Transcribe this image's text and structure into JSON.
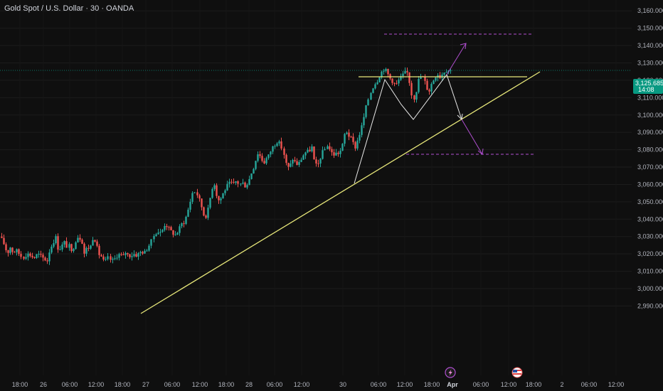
{
  "header": {
    "title": "Gold Spot / U.S. Dollar · 30 · OANDA"
  },
  "colors": {
    "background": "#0f0f0f",
    "up": "#26a69a",
    "down": "#ef5350",
    "trendline": "#e8e87a",
    "projection": "#b04fd0",
    "pattern": "#e6e6e6",
    "price_tag": "#089981"
  },
  "price_tag": {
    "price": "3,125.685",
    "countdown": "14:08"
  },
  "icons": {
    "event1": "lightning-event-icon",
    "event2": "us-flag-event-icon"
  },
  "chart_data": {
    "type": "candlestick",
    "title": "Gold Spot / U.S. Dollar · 30 · OANDA",
    "ylim": [
      2988,
      3163
    ],
    "y_tick_labels": [
      "3,160.000",
      "3,150.000",
      "3,140.000",
      "3,130.000",
      "3,120.000",
      "3,110.000",
      "3,100.000",
      "3,090.000",
      "3,080.000",
      "3,070.000",
      "3,060.000",
      "3,050.000",
      "3,040.000",
      "3,030.000",
      "3,020.000",
      "3,010.000",
      "3,000.000",
      "2,990.000"
    ],
    "y_tick_values": [
      3160,
      3150,
      3140,
      3130,
      3120,
      3110,
      3100,
      3090,
      3080,
      3070,
      3060,
      3050,
      3040,
      3030,
      3020,
      3010,
      3000,
      2990
    ],
    "x_tick_labels": [
      "18:00",
      "26",
      "06:00",
      "12:00",
      "18:00",
      "27",
      "06:00",
      "12:00",
      "18:00",
      "28",
      "06:00",
      "12:00",
      "30",
      "06:00",
      "12:00",
      "18:00",
      "Apr",
      "06:00",
      "12:00",
      "18:00",
      "2",
      "06:00",
      "12:00"
    ],
    "x_bold_labels": [
      "Apr"
    ],
    "last_price": 3125.685,
    "path": [
      [
        0,
        3030
      ],
      [
        6,
        3025
      ],
      [
        10,
        3020
      ],
      [
        14,
        3024
      ],
      [
        18,
        3021
      ],
      [
        24,
        3022
      ],
      [
        28,
        3019
      ],
      [
        32,
        3018
      ],
      [
        38,
        3020
      ],
      [
        44,
        3019
      ],
      [
        46,
        3017
      ],
      [
        52,
        3020
      ],
      [
        56,
        3019
      ],
      [
        62,
        3017
      ],
      [
        66,
        3016
      ],
      [
        70,
        3023
      ],
      [
        74,
        3026
      ],
      [
        78,
        3030
      ],
      [
        82,
        3022
      ],
      [
        86,
        3024
      ],
      [
        90,
        3027
      ],
      [
        94,
        3024
      ],
      [
        98,
        3025
      ],
      [
        100,
        3020
      ],
      [
        104,
        3026
      ],
      [
        108,
        3030
      ],
      [
        112,
        3029
      ],
      [
        116,
        3026
      ],
      [
        118,
        3020
      ],
      [
        122,
        3024
      ],
      [
        126,
        3023
      ],
      [
        130,
        3029
      ],
      [
        134,
        3028
      ],
      [
        138,
        3020
      ],
      [
        142,
        3019
      ],
      [
        144,
        3016
      ],
      [
        148,
        3016
      ],
      [
        152,
        3018
      ],
      [
        156,
        3016
      ],
      [
        160,
        3017
      ],
      [
        164,
        3019
      ],
      [
        168,
        3020
      ],
      [
        172,
        3018
      ],
      [
        176,
        3021
      ],
      [
        180,
        3019
      ],
      [
        184,
        3019
      ],
      [
        188,
        3020
      ],
      [
        192,
        3019
      ],
      [
        196,
        3021
      ],
      [
        200,
        3021
      ],
      [
        204,
        3021
      ],
      [
        208,
        3024
      ],
      [
        212,
        3027
      ],
      [
        216,
        3031
      ],
      [
        220,
        3033
      ],
      [
        224,
        3032
      ],
      [
        228,
        3034
      ],
      [
        232,
        3038
      ],
      [
        234,
        3036
      ],
      [
        238,
        3034
      ],
      [
        242,
        3032
      ],
      [
        246,
        3031
      ],
      [
        250,
        3033
      ],
      [
        254,
        3037
      ],
      [
        258,
        3038
      ],
      [
        262,
        3042
      ],
      [
        266,
        3048
      ],
      [
        270,
        3055
      ],
      [
        274,
        3056
      ],
      [
        278,
        3053
      ],
      [
        282,
        3048
      ],
      [
        286,
        3042
      ],
      [
        288,
        3041
      ],
      [
        292,
        3046
      ],
      [
        296,
        3055
      ],
      [
        300,
        3062
      ],
      [
        304,
        3054
      ],
      [
        308,
        3050
      ],
      [
        312,
        3054
      ],
      [
        316,
        3057
      ],
      [
        320,
        3060
      ],
      [
        324,
        3061
      ],
      [
        328,
        3060
      ],
      [
        332,
        3062
      ],
      [
        336,
        3060
      ],
      [
        340,
        3061
      ],
      [
        344,
        3059
      ],
      [
        348,
        3061
      ],
      [
        352,
        3066
      ],
      [
        356,
        3070
      ],
      [
        358,
        3073
      ],
      [
        362,
        3078
      ],
      [
        366,
        3076
      ],
      [
        370,
        3072
      ],
      [
        374,
        3075
      ],
      [
        378,
        3077
      ],
      [
        382,
        3081
      ],
      [
        386,
        3083
      ],
      [
        390,
        3085
      ],
      [
        394,
        3083
      ],
      [
        398,
        3078
      ],
      [
        400,
        3075
      ],
      [
        402,
        3071
      ],
      [
        406,
        3069
      ],
      [
        410,
        3075
      ],
      [
        414,
        3073
      ],
      [
        418,
        3071
      ],
      [
        422,
        3074
      ],
      [
        426,
        3077
      ],
      [
        430,
        3079
      ],
      [
        434,
        3079
      ],
      [
        438,
        3082
      ],
      [
        440,
        3075
      ],
      [
        444,
        3071
      ],
      [
        448,
        3072
      ],
      [
        452,
        3078
      ],
      [
        456,
        3080
      ],
      [
        460,
        3083
      ],
      [
        464,
        3079
      ],
      [
        468,
        3077
      ],
      [
        472,
        3078
      ],
      [
        476,
        3078
      ],
      [
        480,
        3081
      ],
      [
        484,
        3089
      ],
      [
        486,
        3091
      ],
      [
        490,
        3088
      ],
      [
        494,
        3086
      ],
      [
        496,
        3084
      ],
      [
        498,
        3080
      ],
      [
        502,
        3085
      ],
      [
        506,
        3090
      ],
      [
        510,
        3096
      ],
      [
        514,
        3104
      ],
      [
        518,
        3110
      ],
      [
        522,
        3115
      ],
      [
        526,
        3118
      ],
      [
        530,
        3120
      ],
      [
        534,
        3124
      ],
      [
        538,
        3126
      ],
      [
        540,
        3127
      ],
      [
        544,
        3124
      ],
      [
        548,
        3121
      ],
      [
        552,
        3119
      ],
      [
        556,
        3117
      ],
      [
        560,
        3120
      ],
      [
        564,
        3122
      ],
      [
        568,
        3124
      ],
      [
        572,
        3125
      ],
      [
        576,
        3118
      ],
      [
        580,
        3108
      ],
      [
        584,
        3113
      ],
      [
        588,
        3121
      ],
      [
        592,
        3123
      ],
      [
        596,
        3120
      ],
      [
        600,
        3115
      ],
      [
        602,
        3113
      ],
      [
        606,
        3118
      ],
      [
        610,
        3121
      ],
      [
        614,
        3124
      ],
      [
        618,
        3122
      ],
      [
        622,
        3124
      ],
      [
        626,
        3126
      ],
      [
        630,
        3125
      ],
      [
        634,
        3125.685
      ]
    ]
  }
}
